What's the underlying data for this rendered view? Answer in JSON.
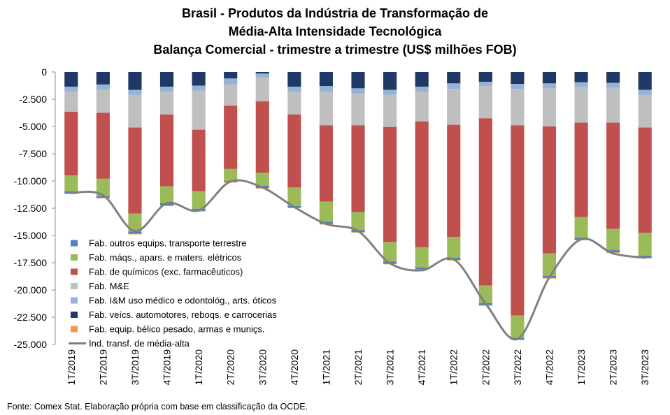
{
  "title_lines": [
    "Brasil - Produtos da Indústria de Transformação de",
    "Média-Alta Intensidade Tecnológica",
    "Balança Comercial - trimestre a trimestre (US$ milhões FOB)"
  ],
  "source_note": "Fonte: Comex Stat. Elaboração própria com base em classificação da OCDE.",
  "chart_data": {
    "type": "bar",
    "stacked": true,
    "title": "Brasil - Produtos da Indústria de Transformação de Média-Alta Intensidade Tecnológica Balança Comercial - trimestre a trimestre (US$ milhões FOB)",
    "xlabel": "",
    "ylabel": "",
    "ylim": [
      -25000,
      0
    ],
    "yticks": [
      0,
      -2500,
      -5000,
      -7500,
      -10000,
      -12500,
      -15000,
      -17500,
      -20000,
      -22500,
      -25000
    ],
    "ytick_labels": [
      "0",
      "-2.500",
      "-5.000",
      "-7.500",
      "-10.000",
      "-12.500",
      "-15.000",
      "-17.500",
      "-20.000",
      "-22.500",
      "-25.000"
    ],
    "grid": false,
    "legend_position": "bottom-left",
    "categories": [
      "1T/2019",
      "2T/2019",
      "3T/2019",
      "4T/2019",
      "1T/2020",
      "2T/2020",
      "3T/2020",
      "4T/2020",
      "1T/2021",
      "2T/2021",
      "3T/2021",
      "4T/2021",
      "1T/2022",
      "2T/2022",
      "3T/2022",
      "4T/2022",
      "1T/2023",
      "2T/2023",
      "3T/2023"
    ],
    "series": [
      {
        "name": "Fab. veícs. automotores, reboqs. e carrocerias",
        "kind": "bar",
        "color": "#1F3864",
        "values": [
          -1350,
          -1150,
          -1650,
          -1350,
          -1250,
          -600,
          -150,
          -1350,
          -1300,
          -1500,
          -1650,
          -1350,
          -1050,
          -900,
          -1100,
          -1050,
          -950,
          -1000,
          -1650
        ]
      },
      {
        "name": "Fab. I&M uso médico e odontológ., arts. óticos",
        "kind": "bar",
        "color": "#95B3D7",
        "values": [
          -450,
          -500,
          -450,
          -450,
          -450,
          -550,
          -350,
          -450,
          -500,
          -500,
          -450,
          -450,
          -500,
          -400,
          -450,
          -450,
          -450,
          -450,
          -450
        ]
      },
      {
        "name": "Fab. M&E",
        "kind": "bar",
        "color": "#BFBFBF",
        "values": [
          -1850,
          -2100,
          -3000,
          -2100,
          -3600,
          -1950,
          -2200,
          -2100,
          -3100,
          -2900,
          -2950,
          -2750,
          -3300,
          -2950,
          -3350,
          -3500,
          -3250,
          -3200,
          -3000
        ]
      },
      {
        "name": "Fab. de químicos (exc. farmacêuticos)",
        "kind": "bar",
        "color": "#C0504D",
        "values": [
          -5850,
          -6050,
          -7900,
          -6600,
          -5650,
          -5800,
          -6550,
          -6700,
          -7000,
          -7950,
          -10550,
          -11550,
          -10300,
          -15350,
          -17450,
          -11650,
          -8650,
          -9750,
          -9650
        ]
      },
      {
        "name": "Fab. máqs., apars. e maters. elétricos",
        "kind": "bar",
        "color": "#9BBB59",
        "values": [
          -1450,
          -1600,
          -1650,
          -1550,
          -1600,
          -1100,
          -1200,
          -1700,
          -1850,
          -1650,
          -1800,
          -1850,
          -1900,
          -1600,
          -2050,
          -2050,
          -1900,
          -1950,
          -2100
        ]
      },
      {
        "name": "Fab. outros equips. transporte terrestre",
        "kind": "bar",
        "color": "#4F81BD",
        "values": [
          -200,
          -150,
          -200,
          -200,
          -200,
          -100,
          -200,
          -150,
          -200,
          -200,
          -200,
          -150,
          -200,
          -200,
          -150,
          -200,
          -200,
          -200,
          -200
        ]
      },
      {
        "name": "Fab. equip. bélico pesado, armas e munições",
        "kind": "bar",
        "color": "#F79646",
        "values": [
          -50,
          -50,
          -50,
          -50,
          -50,
          -50,
          -50,
          -50,
          -50,
          -50,
          -50,
          -50,
          -50,
          -50,
          -50,
          -50,
          -50,
          -50,
          -50
        ]
      },
      {
        "name": "Ind. transf. de média-alta",
        "kind": "line",
        "color": "#808080",
        "values": [
          -11100,
          -11300,
          -14600,
          -12050,
          -12700,
          -10050,
          -10600,
          -12400,
          -13950,
          -14600,
          -17550,
          -18200,
          -17200,
          -21250,
          -24500,
          -18850,
          -15350,
          -16650,
          -17050
        ]
      }
    ],
    "legend_order": [
      "Fab. outros equips. transporte terrestre",
      "Fab. máqs., apars. e maters. elétricos",
      "Fab. de químicos (exc. farmacêuticos)",
      "Fab. M&E",
      "Fab. I&M uso médico e odontológ., arts. óticos",
      "Fab. veícs. automotores, reboqs. e carrocerias",
      "Fab. equip. bélico pesado, armas e muniçs.",
      "Ind. transf. de média-alta"
    ]
  }
}
